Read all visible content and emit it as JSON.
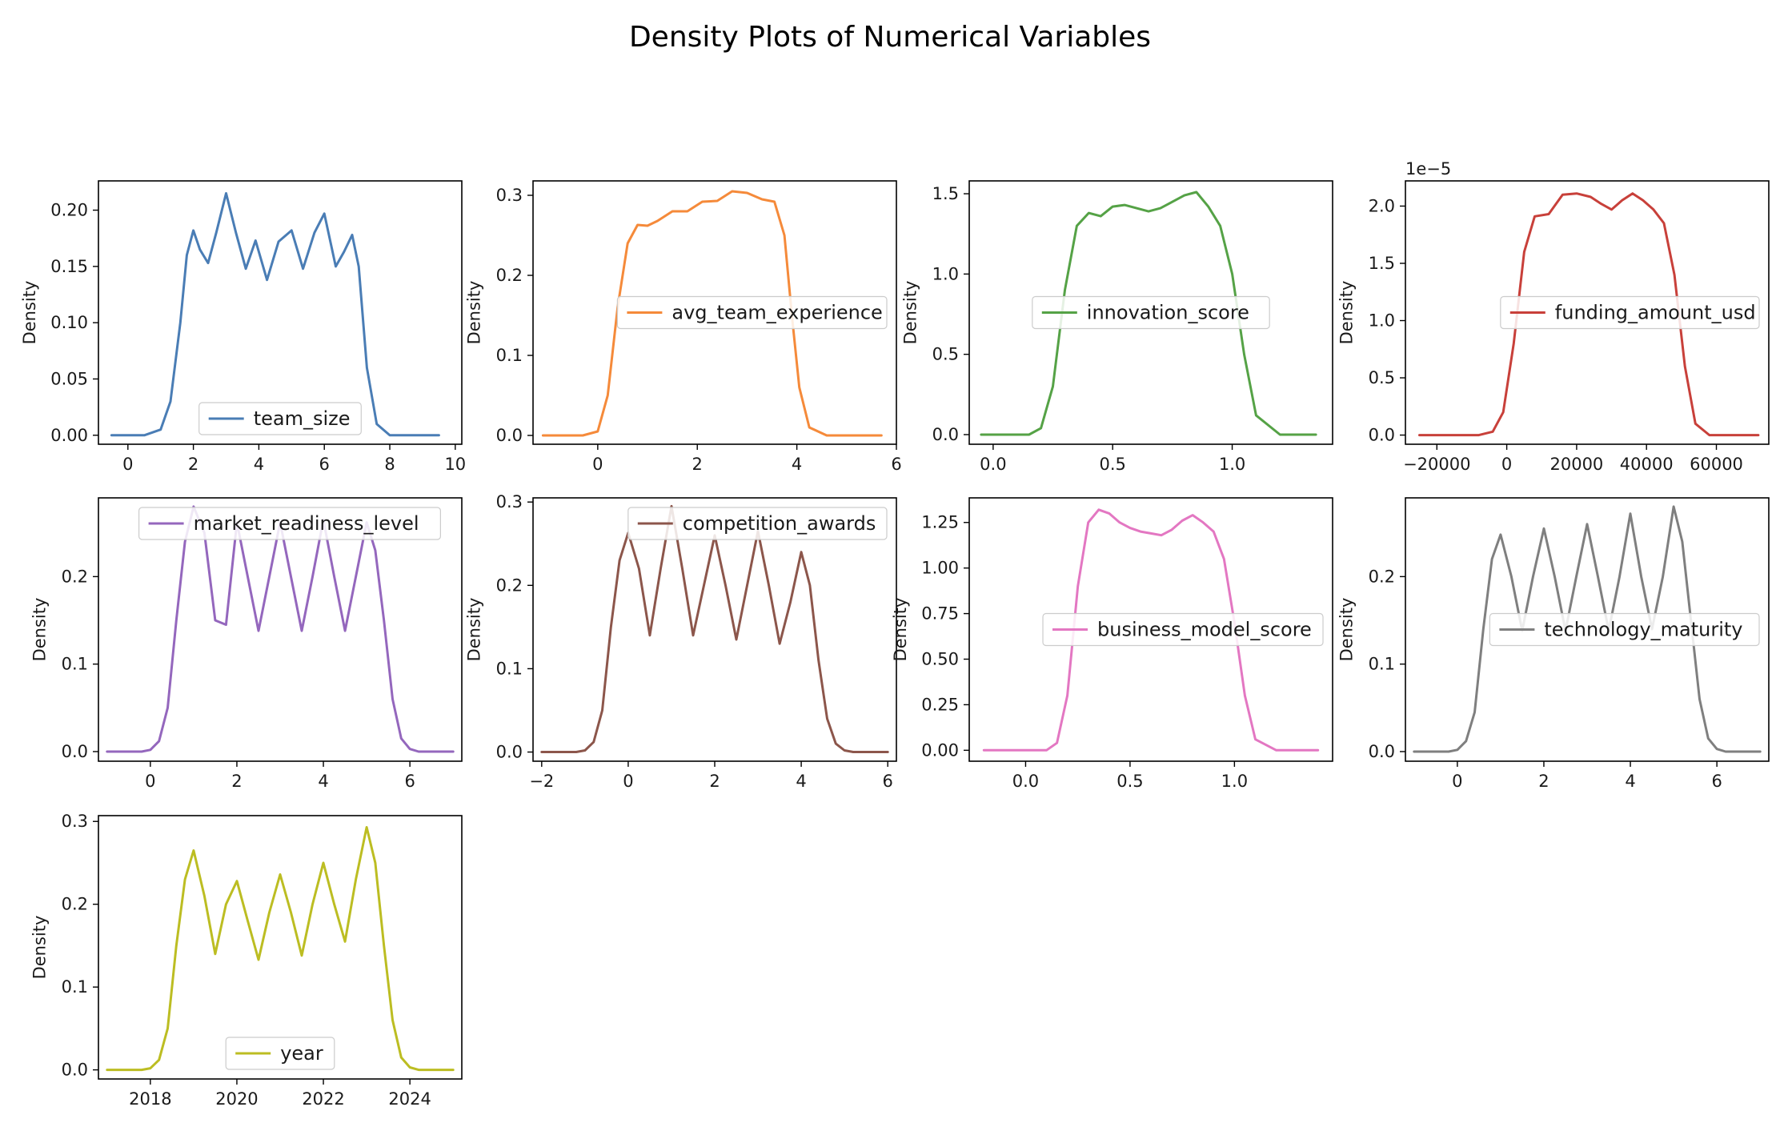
{
  "figure": {
    "title": "Density Plots of Numerical Variables"
  },
  "chart_data": [
    {
      "type": "line",
      "series_name": "team_size",
      "color": "#4a7db5",
      "ylabel": "Density",
      "xlim": [
        -0.9,
        10.2
      ],
      "ylim": [
        -0.008,
        0.226
      ],
      "xticks": [
        0,
        2,
        4,
        6,
        8,
        10
      ],
      "xtick_labels": [
        "0",
        "2",
        "4",
        "6",
        "8",
        "10"
      ],
      "yticks": [
        0.0,
        0.05,
        0.1,
        0.15,
        0.2
      ],
      "ytick_labels": [
        "0.00",
        "0.05",
        "0.10",
        "0.15",
        "0.20"
      ],
      "legend_loc": "lower center",
      "x": [
        -0.5,
        0.5,
        1.0,
        1.3,
        1.6,
        1.8,
        2.0,
        2.2,
        2.45,
        2.7,
        3.0,
        3.3,
        3.6,
        3.9,
        4.25,
        4.6,
        5.0,
        5.35,
        5.7,
        6.0,
        6.35,
        6.6,
        6.85,
        7.05,
        7.3,
        7.6,
        8.0,
        8.5,
        9.5
      ],
      "y": [
        0.0,
        0.0,
        0.005,
        0.03,
        0.1,
        0.16,
        0.182,
        0.165,
        0.153,
        0.18,
        0.215,
        0.18,
        0.148,
        0.173,
        0.138,
        0.172,
        0.182,
        0.148,
        0.18,
        0.197,
        0.15,
        0.163,
        0.178,
        0.15,
        0.06,
        0.01,
        0.0,
        0.0,
        0.0
      ]
    },
    {
      "type": "line",
      "series_name": "avg_team_experience",
      "color": "#f58a3a",
      "ylabel": "Density",
      "xlim": [
        -1.3,
        6.0
      ],
      "ylim": [
        -0.011,
        0.318
      ],
      "xticks": [
        0,
        2,
        4,
        6
      ],
      "xtick_labels": [
        "0",
        "2",
        "4",
        "6"
      ],
      "yticks": [
        0.0,
        0.1,
        0.2,
        0.3
      ],
      "ytick_labels": [
        "0.0",
        "0.1",
        "0.2",
        "0.3"
      ],
      "legend_loc": "center right",
      "x": [
        -1.1,
        -0.3,
        0.0,
        0.2,
        0.4,
        0.6,
        0.8,
        1.0,
        1.2,
        1.5,
        1.8,
        2.1,
        2.4,
        2.7,
        3.0,
        3.3,
        3.55,
        3.75,
        3.9,
        4.05,
        4.25,
        4.6,
        5.0,
        5.7
      ],
      "y": [
        0.0,
        0.0,
        0.005,
        0.05,
        0.16,
        0.24,
        0.263,
        0.262,
        0.268,
        0.28,
        0.28,
        0.292,
        0.293,
        0.305,
        0.303,
        0.295,
        0.292,
        0.25,
        0.15,
        0.06,
        0.01,
        0.0,
        0.0,
        0.0
      ]
    },
    {
      "type": "line",
      "series_name": "innovation_score",
      "color": "#55a246",
      "ylabel": "Density",
      "xlim": [
        -0.1,
        1.42
      ],
      "ylim": [
        -0.06,
        1.58
      ],
      "xticks": [
        0.0,
        0.5,
        1.0
      ],
      "xtick_labels": [
        "0.0",
        "0.5",
        "1.0"
      ],
      "yticks": [
        0.0,
        0.5,
        1.0,
        1.5
      ],
      "ytick_labels": [
        "0.0",
        "0.5",
        "1.0",
        "1.5"
      ],
      "legend_loc": "center",
      "x": [
        -0.05,
        0.15,
        0.2,
        0.25,
        0.3,
        0.35,
        0.4,
        0.45,
        0.5,
        0.55,
        0.6,
        0.65,
        0.7,
        0.75,
        0.8,
        0.85,
        0.9,
        0.95,
        1.0,
        1.05,
        1.1,
        1.2,
        1.35
      ],
      "y": [
        0.0,
        0.0,
        0.04,
        0.3,
        0.9,
        1.3,
        1.38,
        1.36,
        1.42,
        1.43,
        1.41,
        1.39,
        1.41,
        1.45,
        1.49,
        1.51,
        1.42,
        1.3,
        1.0,
        0.5,
        0.12,
        0.0,
        0.0
      ]
    },
    {
      "type": "line",
      "series_name": "funding_amount_usd",
      "color": "#c8403a",
      "ylabel": "Density",
      "axis_offset_label": "1e−5",
      "xlim": [
        -29000,
        75000
      ],
      "ylim": [
        -0.08,
        2.22
      ],
      "xticks": [
        -20000,
        0,
        20000,
        40000,
        60000
      ],
      "xtick_labels": [
        "−20000",
        "0",
        "20000",
        "40000",
        "60000"
      ],
      "yticks": [
        0.0,
        0.5,
        1.0,
        1.5,
        2.0
      ],
      "ytick_labels": [
        "0.0",
        "0.5",
        "1.0",
        "1.5",
        "2.0"
      ],
      "legend_loc": "center right",
      "x": [
        -25000,
        -8000,
        -4000,
        -1000,
        2000,
        5000,
        8000,
        12000,
        16000,
        20000,
        24000,
        27000,
        30000,
        33000,
        36000,
        39000,
        42000,
        45000,
        48000,
        51000,
        54000,
        58000,
        72000
      ],
      "y": [
        0.0,
        0.0,
        0.03,
        0.2,
        0.8,
        1.6,
        1.91,
        1.93,
        2.1,
        2.11,
        2.08,
        2.02,
        1.97,
        2.05,
        2.11,
        2.05,
        1.97,
        1.85,
        1.4,
        0.6,
        0.1,
        0.0,
        0.0
      ]
    },
    {
      "type": "line",
      "series_name": "market_readiness_level",
      "color": "#9467bd",
      "ylabel": "Density",
      "xlim": [
        -1.2,
        7.2
      ],
      "ylim": [
        -0.011,
        0.29
      ],
      "xticks": [
        0,
        2,
        4,
        6
      ],
      "xtick_labels": [
        "0",
        "2",
        "4",
        "6"
      ],
      "yticks": [
        0.0,
        0.1,
        0.2
      ],
      "ytick_labels": [
        "0.0",
        "0.1",
        "0.2"
      ],
      "legend_loc": "upper center",
      "x": [
        -1.0,
        -0.2,
        0.0,
        0.2,
        0.4,
        0.6,
        0.8,
        1.0,
        1.25,
        1.5,
        1.75,
        2.0,
        2.25,
        2.5,
        2.75,
        3.0,
        3.25,
        3.5,
        3.75,
        4.0,
        4.25,
        4.5,
        4.75,
        5.0,
        5.2,
        5.4,
        5.6,
        5.8,
        6.0,
        6.2,
        7.0
      ],
      "y": [
        0.0,
        0.0,
        0.002,
        0.012,
        0.05,
        0.15,
        0.24,
        0.28,
        0.25,
        0.15,
        0.145,
        0.262,
        0.2,
        0.138,
        0.2,
        0.262,
        0.2,
        0.138,
        0.2,
        0.265,
        0.2,
        0.138,
        0.2,
        0.262,
        0.23,
        0.15,
        0.06,
        0.015,
        0.003,
        0.0,
        0.0
      ]
    },
    {
      "type": "line",
      "series_name": "competition_awards",
      "color": "#8c564b",
      "ylabel": "Density",
      "xlim": [
        -2.2,
        6.2
      ],
      "ylim": [
        -0.011,
        0.305
      ],
      "xticks": [
        -2,
        0,
        2,
        4,
        6
      ],
      "xtick_labels": [
        "−2",
        "0",
        "2",
        "4",
        "6"
      ],
      "yticks": [
        0.0,
        0.1,
        0.2,
        0.3
      ],
      "ytick_labels": [
        "0.0",
        "0.1",
        "0.2",
        "0.3"
      ],
      "legend_loc": "upper right",
      "x": [
        -2.0,
        -1.2,
        -1.0,
        -0.8,
        -0.6,
        -0.4,
        -0.2,
        0.0,
        0.25,
        0.5,
        0.75,
        1.0,
        1.25,
        1.5,
        1.75,
        2.0,
        2.25,
        2.5,
        2.75,
        3.0,
        3.25,
        3.5,
        3.75,
        4.0,
        4.2,
        4.4,
        4.6,
        4.8,
        5.0,
        5.2,
        6.0
      ],
      "y": [
        0.0,
        0.0,
        0.002,
        0.012,
        0.05,
        0.15,
        0.23,
        0.263,
        0.22,
        0.14,
        0.22,
        0.295,
        0.22,
        0.14,
        0.2,
        0.26,
        0.2,
        0.135,
        0.2,
        0.265,
        0.2,
        0.13,
        0.18,
        0.24,
        0.2,
        0.11,
        0.04,
        0.01,
        0.002,
        0.0,
        0.0
      ]
    },
    {
      "type": "line",
      "series_name": "business_model_score",
      "color": "#e377c2",
      "ylabel": "Density",
      "xlim": [
        -0.27,
        1.47
      ],
      "ylim": [
        -0.06,
        1.385
      ],
      "xticks": [
        0.0,
        0.5,
        1.0
      ],
      "xtick_labels": [
        "0.0",
        "0.5",
        "1.0"
      ],
      "yticks": [
        0.0,
        0.25,
        0.5,
        0.75,
        1.0,
        1.25
      ],
      "ytick_labels": [
        "0.00",
        "0.25",
        "0.50",
        "0.75",
        "1.00",
        "1.25"
      ],
      "legend_loc": "center right",
      "x": [
        -0.2,
        0.1,
        0.15,
        0.2,
        0.25,
        0.3,
        0.35,
        0.4,
        0.45,
        0.5,
        0.55,
        0.6,
        0.65,
        0.7,
        0.75,
        0.8,
        0.85,
        0.9,
        0.95,
        1.0,
        1.05,
        1.1,
        1.2,
        1.4
      ],
      "y": [
        0.0,
        0.0,
        0.04,
        0.3,
        0.9,
        1.25,
        1.32,
        1.3,
        1.25,
        1.22,
        1.2,
        1.19,
        1.18,
        1.21,
        1.26,
        1.29,
        1.25,
        1.2,
        1.05,
        0.7,
        0.3,
        0.06,
        0.0,
        0.0
      ]
    },
    {
      "type": "line",
      "series_name": "technology_maturity",
      "color": "#7f7f7f",
      "ylabel": "Density",
      "xlim": [
        -1.2,
        7.2
      ],
      "ylim": [
        -0.011,
        0.29
      ],
      "xticks": [
        0,
        2,
        4,
        6
      ],
      "xtick_labels": [
        "0",
        "2",
        "4",
        "6"
      ],
      "yticks": [
        0.0,
        0.1,
        0.2
      ],
      "ytick_labels": [
        "0.0",
        "0.1",
        "0.2"
      ],
      "legend_loc": "center right",
      "x": [
        -1.0,
        -0.2,
        0.0,
        0.2,
        0.4,
        0.6,
        0.8,
        1.0,
        1.25,
        1.5,
        1.75,
        2.0,
        2.25,
        2.5,
        2.75,
        3.0,
        3.25,
        3.5,
        3.75,
        4.0,
        4.25,
        4.5,
        4.75,
        5.0,
        5.2,
        5.4,
        5.6,
        5.8,
        6.0,
        6.2,
        7.0
      ],
      "y": [
        0.0,
        0.0,
        0.002,
        0.012,
        0.045,
        0.14,
        0.22,
        0.248,
        0.2,
        0.138,
        0.2,
        0.255,
        0.2,
        0.138,
        0.2,
        0.26,
        0.2,
        0.138,
        0.2,
        0.272,
        0.2,
        0.14,
        0.2,
        0.28,
        0.24,
        0.15,
        0.06,
        0.015,
        0.003,
        0.0,
        0.0
      ]
    },
    {
      "type": "line",
      "series_name": "year",
      "color": "#bcbd22",
      "ylabel": "Density",
      "xlim": [
        2016.8,
        2025.2
      ],
      "ylim": [
        -0.011,
        0.307
      ],
      "xticks": [
        2018,
        2020,
        2022,
        2024
      ],
      "xtick_labels": [
        "2018",
        "2020",
        "2022",
        "2024"
      ],
      "yticks": [
        0.0,
        0.1,
        0.2,
        0.3
      ],
      "ytick_labels": [
        "0.0",
        "0.1",
        "0.2",
        "0.3"
      ],
      "legend_loc": "lower center",
      "x": [
        2017.0,
        2017.8,
        2018.0,
        2018.2,
        2018.4,
        2018.6,
        2018.8,
        2019.0,
        2019.25,
        2019.5,
        2019.75,
        2020.0,
        2020.25,
        2020.5,
        2020.75,
        2021.0,
        2021.25,
        2021.5,
        2021.75,
        2022.0,
        2022.25,
        2022.5,
        2022.75,
        2023.0,
        2023.2,
        2023.4,
        2023.6,
        2023.8,
        2024.0,
        2024.2,
        2025.0
      ],
      "y": [
        0.0,
        0.0,
        0.002,
        0.012,
        0.05,
        0.15,
        0.23,
        0.265,
        0.21,
        0.14,
        0.2,
        0.228,
        0.18,
        0.133,
        0.19,
        0.236,
        0.19,
        0.138,
        0.2,
        0.25,
        0.2,
        0.155,
        0.23,
        0.293,
        0.25,
        0.15,
        0.06,
        0.015,
        0.003,
        0.0,
        0.0
      ]
    }
  ]
}
